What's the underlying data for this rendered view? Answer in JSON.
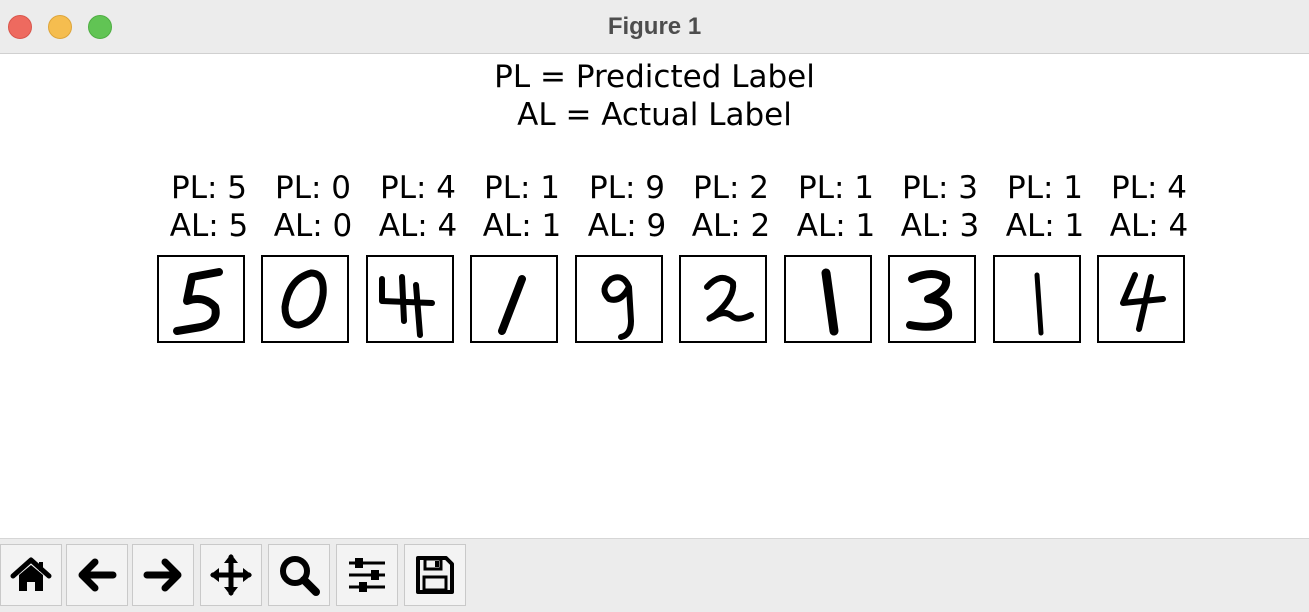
{
  "window": {
    "title": "Figure 1"
  },
  "figure": {
    "suptitle_line1": "PL = Predicted Label",
    "suptitle_line2": "AL = Actual Label",
    "panels": [
      {
        "pl": "PL: 5",
        "al": "AL: 5",
        "digit": "5"
      },
      {
        "pl": "PL: 0",
        "al": "AL: 0",
        "digit": "0"
      },
      {
        "pl": "PL: 4",
        "al": "AL: 4",
        "digit": "4"
      },
      {
        "pl": "PL: 1",
        "al": "AL: 1",
        "digit": "1"
      },
      {
        "pl": "PL: 9",
        "al": "AL: 9",
        "digit": "9"
      },
      {
        "pl": "PL: 2",
        "al": "AL: 2",
        "digit": "2"
      },
      {
        "pl": "PL: 1",
        "al": "AL: 1",
        "digit": "1"
      },
      {
        "pl": "PL: 3",
        "al": "AL: 3",
        "digit": "3"
      },
      {
        "pl": "PL: 1",
        "al": "AL: 1",
        "digit": "1"
      },
      {
        "pl": "PL: 4",
        "al": "AL: 4",
        "digit": "4"
      }
    ]
  },
  "toolbar": {
    "buttons": [
      {
        "icon": "home-icon"
      },
      {
        "icon": "back-arrow-icon"
      },
      {
        "icon": "forward-arrow-icon"
      },
      {
        "icon": "pan-move-icon"
      },
      {
        "icon": "zoom-magnifier-icon"
      },
      {
        "icon": "configure-subplots-icon"
      },
      {
        "icon": "save-floppy-icon"
      }
    ]
  },
  "colors": {
    "close": "#ee6a5f",
    "minimize": "#f5bd4f",
    "maximize": "#61c454",
    "ink": "#000000"
  }
}
